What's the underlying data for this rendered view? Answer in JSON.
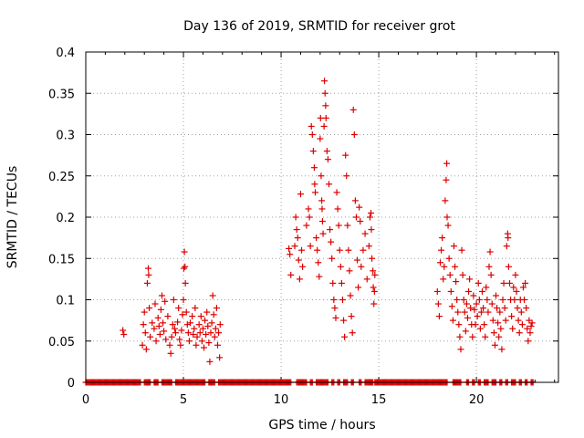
{
  "chart_data": {
    "type": "scatter",
    "title": "Day 136 of 2019, SRMTID for receiver grot",
    "xlabel": "GPS time / hours",
    "ylabel": "SRMTID / TECUs",
    "xlim": [
      0,
      24.2
    ],
    "ylim": [
      0,
      0.4
    ],
    "xticks": [
      0,
      5,
      10,
      15,
      20
    ],
    "yticks": [
      0,
      0.05,
      0.1,
      0.15,
      0.2,
      0.25,
      0.3,
      0.35,
      0.4
    ],
    "ytick_labels": [
      "0",
      "0.05",
      "0.1",
      "0.15",
      "0.2",
      "0.25",
      "0.3",
      "0.35",
      "0.4"
    ],
    "xtick_labels": [
      "0",
      "5",
      "10",
      "15",
      "20"
    ],
    "grid": true,
    "marker": "+",
    "color": "#dd0000",
    "series": [
      {
        "name": "SRMTID",
        "points": [
          [
            1.9,
            0.063
          ],
          [
            1.95,
            0.058
          ],
          [
            2.9,
            0.045
          ],
          [
            2.95,
            0.07
          ],
          [
            3.0,
            0.085
          ],
          [
            3.05,
            0.06
          ],
          [
            3.1,
            0.04
          ],
          [
            3.15,
            0.12
          ],
          [
            3.2,
            0.138
          ],
          [
            3.22,
            0.13
          ],
          [
            3.25,
            0.09
          ],
          [
            3.3,
            0.055
          ],
          [
            3.4,
            0.072
          ],
          [
            3.5,
            0.065
          ],
          [
            3.55,
            0.095
          ],
          [
            3.6,
            0.05
          ],
          [
            3.7,
            0.078
          ],
          [
            3.75,
            0.068
          ],
          [
            3.8,
            0.058
          ],
          [
            3.85,
            0.088
          ],
          [
            3.9,
            0.105
          ],
          [
            3.95,
            0.072
          ],
          [
            4.0,
            0.062
          ],
          [
            4.05,
            0.098
          ],
          [
            4.1,
            0.052
          ],
          [
            4.2,
            0.08
          ],
          [
            4.3,
            0.045
          ],
          [
            4.35,
            0.035
          ],
          [
            4.4,
            0.055
          ],
          [
            4.45,
            0.07
          ],
          [
            4.5,
            0.1
          ],
          [
            4.55,
            0.065
          ],
          [
            4.6,
            0.06
          ],
          [
            4.7,
            0.073
          ],
          [
            4.75,
            0.09
          ],
          [
            4.8,
            0.052
          ],
          [
            4.85,
            0.045
          ],
          [
            4.9,
            0.063
          ],
          [
            4.95,
            0.082
          ],
          [
            5.0,
            0.1
          ],
          [
            5.02,
            0.138
          ],
          [
            5.05,
            0.158
          ],
          [
            5.08,
            0.14
          ],
          [
            5.1,
            0.12
          ],
          [
            5.15,
            0.085
          ],
          [
            5.2,
            0.07
          ],
          [
            5.25,
            0.06
          ],
          [
            5.3,
            0.05
          ],
          [
            5.35,
            0.072
          ],
          [
            5.45,
            0.08
          ],
          [
            5.5,
            0.058
          ],
          [
            5.55,
            0.065
          ],
          [
            5.6,
            0.09
          ],
          [
            5.65,
            0.045
          ],
          [
            5.7,
            0.055
          ],
          [
            5.8,
            0.07
          ],
          [
            5.85,
            0.06
          ],
          [
            5.9,
            0.08
          ],
          [
            5.95,
            0.05
          ],
          [
            6.0,
            0.065
          ],
          [
            6.05,
            0.042
          ],
          [
            6.1,
            0.075
          ],
          [
            6.15,
            0.058
          ],
          [
            6.2,
            0.085
          ],
          [
            6.25,
            0.068
          ],
          [
            6.3,
            0.048
          ],
          [
            6.35,
            0.025
          ],
          [
            6.4,
            0.06
          ],
          [
            6.45,
            0.072
          ],
          [
            6.5,
            0.105
          ],
          [
            6.55,
            0.082
          ],
          [
            6.6,
            0.055
          ],
          [
            6.65,
            0.065
          ],
          [
            6.7,
            0.09
          ],
          [
            6.75,
            0.045
          ],
          [
            6.8,
            0.06
          ],
          [
            6.85,
            0.03
          ],
          [
            6.88,
            0.07
          ],
          [
            10.4,
            0.162
          ],
          [
            10.45,
            0.155
          ],
          [
            10.5,
            0.13
          ],
          [
            10.7,
            0.165
          ],
          [
            10.75,
            0.2
          ],
          [
            10.8,
            0.185
          ],
          [
            10.85,
            0.175
          ],
          [
            10.9,
            0.148
          ],
          [
            10.95,
            0.125
          ],
          [
            11.0,
            0.228
          ],
          [
            11.05,
            0.16
          ],
          [
            11.1,
            0.14
          ],
          [
            11.3,
            0.19
          ],
          [
            11.4,
            0.21
          ],
          [
            11.45,
            0.2
          ],
          [
            11.5,
            0.165
          ],
          [
            11.55,
            0.31
          ],
          [
            11.6,
            0.3
          ],
          [
            11.65,
            0.28
          ],
          [
            11.7,
            0.26
          ],
          [
            11.72,
            0.24
          ],
          [
            11.75,
            0.23
          ],
          [
            11.8,
            0.175
          ],
          [
            11.85,
            0.16
          ],
          [
            11.9,
            0.145
          ],
          [
            11.95,
            0.128
          ],
          [
            12.0,
            0.295
          ],
          [
            12.02,
            0.32
          ],
          [
            12.05,
            0.25
          ],
          [
            12.08,
            0.22
          ],
          [
            12.1,
            0.21
          ],
          [
            12.12,
            0.195
          ],
          [
            12.15,
            0.18
          ],
          [
            12.2,
            0.31
          ],
          [
            12.22,
            0.365
          ],
          [
            12.25,
            0.35
          ],
          [
            12.28,
            0.335
          ],
          [
            12.3,
            0.32
          ],
          [
            12.35,
            0.28
          ],
          [
            12.4,
            0.27
          ],
          [
            12.45,
            0.24
          ],
          [
            12.5,
            0.185
          ],
          [
            12.55,
            0.17
          ],
          [
            12.6,
            0.15
          ],
          [
            12.65,
            0.12
          ],
          [
            12.7,
            0.1
          ],
          [
            12.75,
            0.09
          ],
          [
            12.8,
            0.078
          ],
          [
            12.85,
            0.23
          ],
          [
            12.9,
            0.21
          ],
          [
            12.95,
            0.19
          ],
          [
            13.0,
            0.16
          ],
          [
            13.05,
            0.14
          ],
          [
            13.1,
            0.12
          ],
          [
            13.15,
            0.1
          ],
          [
            13.2,
            0.075
          ],
          [
            13.25,
            0.055
          ],
          [
            13.3,
            0.275
          ],
          [
            13.35,
            0.25
          ],
          [
            13.4,
            0.19
          ],
          [
            13.45,
            0.16
          ],
          [
            13.5,
            0.135
          ],
          [
            13.55,
            0.105
          ],
          [
            13.6,
            0.08
          ],
          [
            13.65,
            0.06
          ],
          [
            13.7,
            0.33
          ],
          [
            13.75,
            0.3
          ],
          [
            13.8,
            0.22
          ],
          [
            13.85,
            0.2
          ],
          [
            13.9,
            0.148
          ],
          [
            13.95,
            0.115
          ],
          [
            14.0,
            0.212
          ],
          [
            14.05,
            0.195
          ],
          [
            14.1,
            0.14
          ],
          [
            14.2,
            0.16
          ],
          [
            14.3,
            0.18
          ],
          [
            14.4,
            0.125
          ],
          [
            14.5,
            0.165
          ],
          [
            14.55,
            0.2
          ],
          [
            14.6,
            0.205
          ],
          [
            14.62,
            0.185
          ],
          [
            14.65,
            0.15
          ],
          [
            14.7,
            0.135
          ],
          [
            14.72,
            0.115
          ],
          [
            14.75,
            0.095
          ],
          [
            14.78,
            0.11
          ],
          [
            14.8,
            0.13
          ],
          [
            18.0,
            0.11
          ],
          [
            18.05,
            0.095
          ],
          [
            18.1,
            0.08
          ],
          [
            18.15,
            0.145
          ],
          [
            18.2,
            0.16
          ],
          [
            18.25,
            0.175
          ],
          [
            18.3,
            0.125
          ],
          [
            18.35,
            0.14
          ],
          [
            18.4,
            0.22
          ],
          [
            18.45,
            0.245
          ],
          [
            18.48,
            0.265
          ],
          [
            18.5,
            0.2
          ],
          [
            18.55,
            0.19
          ],
          [
            18.6,
            0.15
          ],
          [
            18.65,
            0.13
          ],
          [
            18.7,
            0.11
          ],
          [
            18.75,
            0.092
          ],
          [
            18.8,
            0.075
          ],
          [
            18.85,
            0.165
          ],
          [
            18.9,
            0.14
          ],
          [
            18.95,
            0.122
          ],
          [
            19.0,
            0.1
          ],
          [
            19.05,
            0.085
          ],
          [
            19.1,
            0.07
          ],
          [
            19.15,
            0.055
          ],
          [
            19.2,
            0.04
          ],
          [
            19.25,
            0.16
          ],
          [
            19.3,
            0.13
          ],
          [
            19.35,
            0.1
          ],
          [
            19.4,
            0.085
          ],
          [
            19.45,
            0.062
          ],
          [
            19.5,
            0.095
          ],
          [
            19.55,
            0.078
          ],
          [
            19.6,
            0.11
          ],
          [
            19.65,
            0.125
          ],
          [
            19.7,
            0.09
          ],
          [
            19.75,
            0.07
          ],
          [
            19.8,
            0.055
          ],
          [
            19.85,
            0.105
          ],
          [
            19.9,
            0.088
          ],
          [
            19.95,
            0.07
          ],
          [
            20.0,
            0.095
          ],
          [
            20.05,
            0.08
          ],
          [
            20.1,
            0.12
          ],
          [
            20.15,
            0.1
          ],
          [
            20.2,
            0.065
          ],
          [
            20.25,
            0.085
          ],
          [
            20.3,
            0.11
          ],
          [
            20.35,
            0.09
          ],
          [
            20.4,
            0.07
          ],
          [
            20.45,
            0.055
          ],
          [
            20.5,
            0.115
          ],
          [
            20.55,
            0.1
          ],
          [
            20.6,
            0.085
          ],
          [
            20.65,
            0.14
          ],
          [
            20.7,
            0.158
          ],
          [
            20.75,
            0.13
          ],
          [
            20.8,
            0.095
          ],
          [
            20.85,
            0.075
          ],
          [
            20.9,
            0.06
          ],
          [
            20.95,
            0.045
          ],
          [
            21.0,
            0.105
          ],
          [
            21.05,
            0.09
          ],
          [
            21.1,
            0.072
          ],
          [
            21.15,
            0.055
          ],
          [
            21.2,
            0.085
          ],
          [
            21.25,
            0.065
          ],
          [
            21.3,
            0.04
          ],
          [
            21.35,
            0.1
          ],
          [
            21.4,
            0.12
          ],
          [
            21.45,
            0.09
          ],
          [
            21.5,
            0.075
          ],
          [
            21.55,
            0.165
          ],
          [
            21.6,
            0.18
          ],
          [
            21.62,
            0.175
          ],
          [
            21.65,
            0.14
          ],
          [
            21.7,
            0.12
          ],
          [
            21.75,
            0.1
          ],
          [
            21.8,
            0.08
          ],
          [
            21.85,
            0.065
          ],
          [
            21.9,
            0.115
          ],
          [
            21.95,
            0.1
          ],
          [
            22.0,
            0.13
          ],
          [
            22.05,
            0.11
          ],
          [
            22.1,
            0.09
          ],
          [
            22.15,
            0.075
          ],
          [
            22.2,
            0.06
          ],
          [
            22.25,
            0.1
          ],
          [
            22.3,
            0.085
          ],
          [
            22.35,
            0.07
          ],
          [
            22.4,
            0.115
          ],
          [
            22.45,
            0.1
          ],
          [
            22.5,
            0.12
          ],
          [
            22.55,
            0.09
          ],
          [
            22.6,
            0.065
          ],
          [
            22.65,
            0.05
          ],
          [
            22.7,
            0.075
          ],
          [
            22.75,
            0.06
          ],
          [
            22.8,
            0.068
          ],
          [
            22.85,
            0.072
          ]
        ]
      }
    ],
    "baseline_zero_hours": [
      [
        0.0,
        2.8
      ],
      [
        3.0,
        3.3
      ],
      [
        3.5,
        3.7
      ],
      [
        3.9,
        4.4
      ],
      [
        4.6,
        6.1
      ],
      [
        6.3,
        6.6
      ],
      [
        6.8,
        10.5
      ],
      [
        10.8,
        11.3
      ],
      [
        11.5,
        11.6
      ],
      [
        11.8,
        12.4
      ],
      [
        12.6,
        12.7
      ],
      [
        12.9,
        13.0
      ],
      [
        13.2,
        13.4
      ],
      [
        13.6,
        13.7
      ],
      [
        14.0,
        14.1
      ],
      [
        14.3,
        14.7
      ],
      [
        14.8,
        18.5
      ],
      [
        18.8,
        19.2
      ],
      [
        19.5,
        19.6
      ],
      [
        19.8,
        19.9
      ],
      [
        20.1,
        20.2
      ],
      [
        20.4,
        20.6
      ],
      [
        20.8,
        21.0
      ],
      [
        21.2,
        21.3
      ],
      [
        21.5,
        21.6
      ],
      [
        21.8,
        22.0
      ],
      [
        22.2,
        22.3
      ],
      [
        22.5,
        22.6
      ],
      [
        22.8,
        22.9
      ]
    ]
  }
}
